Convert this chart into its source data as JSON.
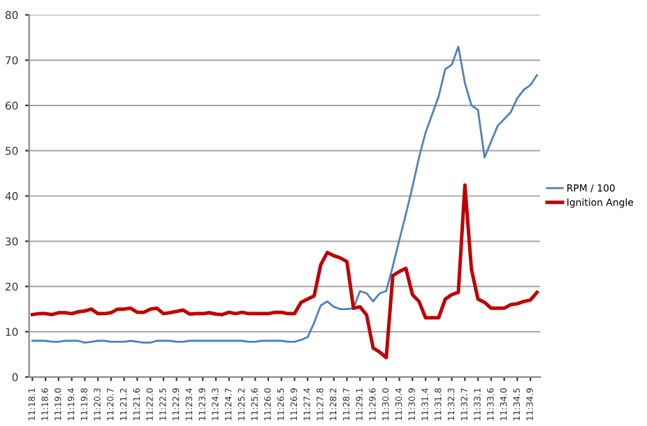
{
  "chart_data": {
    "type": "line",
    "categories": [
      "11:18.1",
      null,
      "11:18.6",
      null,
      "11:19.0",
      null,
      "11:19.4",
      null,
      "11:19.8",
      null,
      "11:20.3",
      null,
      "11:20.7",
      null,
      "11:21.2",
      null,
      "11:21.6",
      null,
      "11:22.0",
      null,
      "11:22.5",
      null,
      "11:22.9",
      null,
      "11:23.4",
      null,
      "11:23.9",
      null,
      "11:24.3",
      null,
      "11:24.7",
      null,
      "11:25.2",
      null,
      "11:25.6",
      null,
      "11:26.0",
      null,
      "11:26.5",
      null,
      "11:26.9",
      null,
      "11:27.4",
      null,
      "11:27.8",
      null,
      "11:28.2",
      null,
      "11:28.7",
      null,
      "11:29.1",
      null,
      "11:29.6",
      null,
      "11:30.0",
      null,
      "11:30.4",
      null,
      "11:30.9",
      null,
      "11:31.4",
      null,
      "11:31.8",
      null,
      "11:32.3",
      null,
      "11:32.7",
      null,
      "11:33.1",
      null,
      "11:33.6",
      null,
      "11:34.0",
      null,
      "11:34.5",
      null,
      "11:34.9",
      null
    ],
    "series": [
      {
        "name": "RPM / 100",
        "color": "#4f81bd",
        "values": [
          8,
          8,
          8,
          7.8,
          7.8,
          8,
          8,
          8,
          7.6,
          7.8,
          8,
          8,
          7.8,
          7.8,
          7.8,
          8,
          7.8,
          7.6,
          7.6,
          8,
          8,
          8,
          7.8,
          7.8,
          8,
          8,
          8,
          8,
          8,
          8,
          8,
          8,
          8,
          7.8,
          7.8,
          8,
          8,
          8,
          8,
          7.8,
          7.8,
          8.2,
          8.8,
          12,
          15.8,
          16.7,
          15.5,
          15,
          15,
          15.2,
          19,
          18.5,
          16.7,
          18.5,
          19,
          24.5,
          30.3,
          36,
          42,
          48.5,
          54,
          58,
          62,
          68,
          69,
          73,
          65,
          60,
          59,
          48.5,
          52,
          55.5,
          57,
          58.5,
          61.6,
          63.5,
          64.5,
          66.7
        ]
      },
      {
        "name": "Ignition Angle",
        "color": "#c00000",
        "values": [
          13.8,
          14,
          14,
          13.8,
          14.2,
          14.2,
          14,
          14.4,
          14.6,
          15,
          14,
          14,
          14.2,
          15,
          15,
          15.2,
          14.3,
          14.3,
          15,
          15.2,
          14,
          14.2,
          14.5,
          14.8,
          13.9,
          14,
          14,
          14.2,
          13.9,
          13.8,
          14.3,
          14,
          14.3,
          14,
          14,
          14,
          14,
          14.3,
          14.3,
          14,
          14,
          16.5,
          17.2,
          17.9,
          24.8,
          27.5,
          26.8,
          26.3,
          25.5,
          15.2,
          15.5,
          13.7,
          6.4,
          5.5,
          4.3,
          22.4,
          23.3,
          24,
          18.2,
          16.7,
          13.1,
          13.1,
          13.1,
          17.2,
          18.2,
          18.7,
          42.4,
          23.8,
          17.2,
          16.5,
          15.2,
          15.2,
          15.2,
          16,
          16.2,
          16.7,
          17,
          18.7
        ]
      }
    ],
    "ylim": [
      0,
      80
    ],
    "yticks": [
      0,
      10,
      20,
      30,
      40,
      50,
      60,
      70,
      80
    ],
    "grid": "y",
    "legend": "right",
    "marker": "none",
    "line_style": "solid"
  }
}
